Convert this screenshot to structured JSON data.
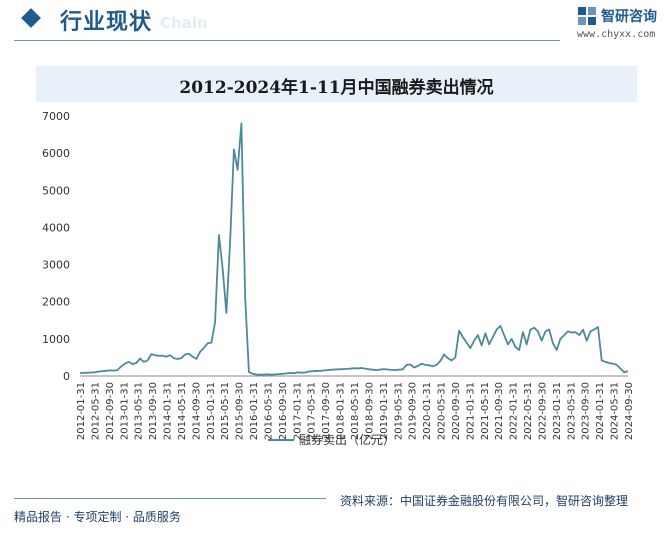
{
  "header": {
    "title": "行业现状",
    "watermark": "Chain"
  },
  "brand": {
    "name": "智研咨询",
    "url": "www.chyxx.com",
    "color": "#1f5b8f"
  },
  "footer": {
    "left": "精品报告 · 专项定制 · 品质服务",
    "source": "资料来源：中国证券金融股份有限公司，智研咨询整理"
  },
  "chart_data": {
    "type": "line",
    "title": "2012-2024年1-11月中国融券卖出情况",
    "ylim": [
      0,
      7000
    ],
    "yticks": [
      0,
      1000,
      2000,
      3000,
      4000,
      5000,
      6000,
      7000
    ],
    "xtick_labels": [
      "2012-01-31",
      "2012-05-31",
      "2012-09-30",
      "2013-01-31",
      "2013-05-31",
      "2013-09-30",
      "2014-01-31",
      "2014-05-31",
      "2014-09-30",
      "2015-01-31",
      "2015-05-31",
      "2015-09-30",
      "2016-01-31",
      "2016-05-31",
      "2016-09-30",
      "2017-01-31",
      "2017-05-31",
      "2017-09-30",
      "2018-01-31",
      "2018-05-31",
      "2018-09-30",
      "2019-01-31",
      "2019-05-31",
      "2019-09-30",
      "2020-01-31",
      "2020-05-31",
      "2020-09-30",
      "2021-01-31",
      "2021-05-31",
      "2021-09-30",
      "2022-01-31",
      "2022-05-31",
      "2022-09-30",
      "2023-01-31",
      "2023-05-31",
      "2023-09-30",
      "2024-01-31",
      "2024-05-31",
      "2024-09-30"
    ],
    "grid": false,
    "legend_position": "bottom",
    "series": [
      {
        "name": "融券卖出（亿元）",
        "color": "#4d8a99",
        "values": [
          80,
          85,
          90,
          95,
          100,
          120,
          130,
          140,
          150,
          145,
          160,
          260,
          330,
          380,
          320,
          350,
          470,
          380,
          420,
          590,
          560,
          540,
          550,
          520,
          560,
          480,
          460,
          480,
          580,
          600,
          520,
          460,
          650,
          760,
          880,
          900,
          1450,
          3800,
          2900,
          1700,
          3600,
          6100,
          5550,
          6800,
          2100,
          110,
          60,
          40,
          35,
          40,
          45,
          38,
          42,
          50,
          60,
          70,
          80,
          75,
          100,
          90,
          95,
          120,
          130,
          140,
          135,
          150,
          160,
          170,
          175,
          180,
          185,
          190,
          200,
          210,
          205,
          215,
          200,
          180,
          170,
          160,
          175,
          185,
          175,
          165,
          160,
          170,
          180,
          300,
          310,
          230,
          270,
          330,
          300,
          290,
          260,
          300,
          400,
          580,
          480,
          420,
          500,
          1220,
          1050,
          900,
          750,
          950,
          1100,
          820,
          1150,
          850,
          1050,
          1250,
          1350,
          1100,
          850,
          1000,
          780,
          700,
          1180,
          850,
          1250,
          1300,
          1200,
          950,
          1200,
          1250,
          880,
          700,
          1000,
          1100,
          1200,
          1170,
          1180,
          1100,
          1250,
          950,
          1200,
          1250,
          1320,
          420,
          380,
          350,
          330,
          300,
          200,
          100,
          130
        ]
      }
    ]
  }
}
